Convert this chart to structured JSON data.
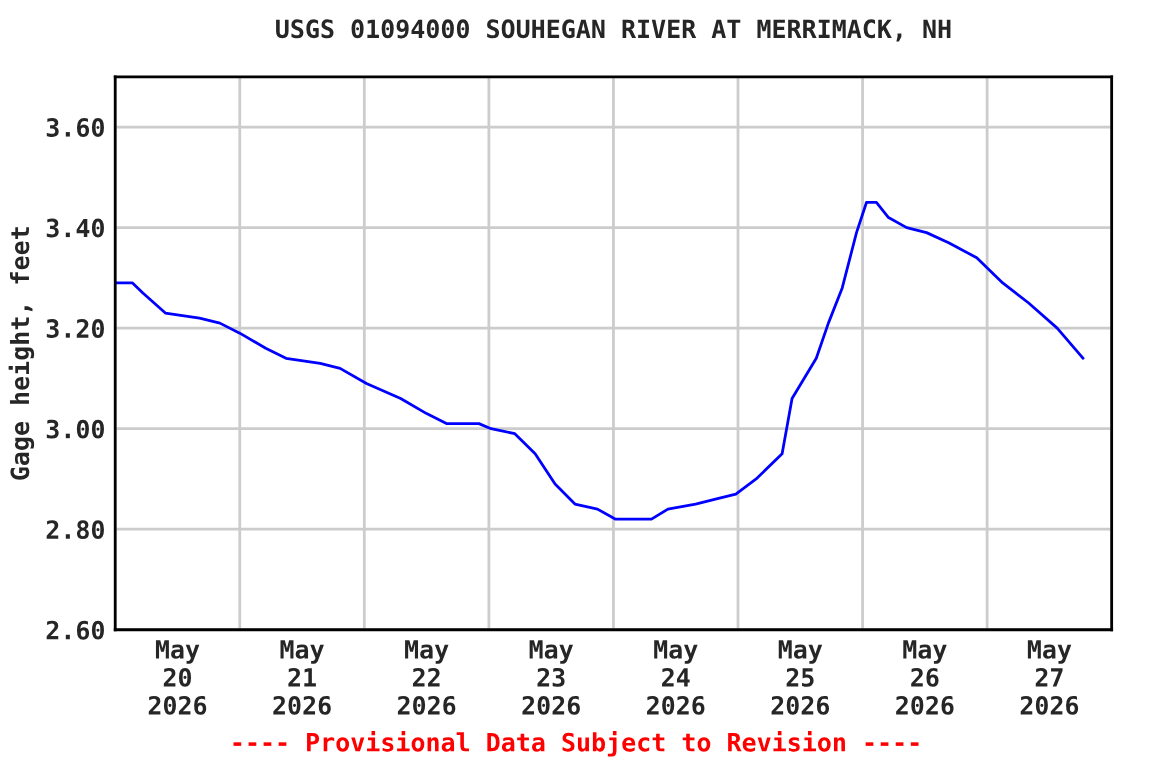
{
  "chart_data": {
    "type": "line",
    "title": "USGS 01094000 SOUHEGAN RIVER AT MERRIMACK, NH",
    "ylabel": "Gage height, feet",
    "annotations": [
      "---- Provisional Data Subject to Revision ----"
    ],
    "x": [
      "2026-05-20T00:00",
      "2026-05-20T03:20",
      "2026-05-20T05:20",
      "2026-05-20T09:40",
      "2026-05-20T16:15",
      "2026-05-20T20:10",
      "2026-05-21T00:00",
      "2026-05-21T05:00",
      "2026-05-21T08:55",
      "2026-05-21T15:30",
      "2026-05-21T19:20",
      "2026-05-22T00:25",
      "2026-05-22T07:00",
      "2026-05-22T12:00",
      "2026-05-22T15:55",
      "2026-05-22T22:05",
      "2026-05-23T00:25",
      "2026-05-23T05:00",
      "2026-05-23T08:55",
      "2026-05-23T12:45",
      "2026-05-23T16:35",
      "2026-05-23T20:55",
      "2026-05-24T00:25",
      "2026-05-24T07:20",
      "2026-05-24T10:30",
      "2026-05-24T15:50",
      "2026-05-24T19:40",
      "2026-05-24T23:35",
      "2026-05-25T03:30",
      "2026-05-25T08:30",
      "2026-05-25T10:25",
      "2026-05-25T15:05",
      "2026-05-25T17:25",
      "2026-05-25T20:05",
      "2026-05-25T22:50",
      "2026-05-26T00:45",
      "2026-05-26T02:40",
      "2026-05-26T05:00",
      "2026-05-26T08:30",
      "2026-05-26T12:20",
      "2026-05-26T16:35",
      "2026-05-26T22:00",
      "2026-05-27T03:00",
      "2026-05-27T08:00",
      "2026-05-27T13:30",
      "2026-05-27T18:30"
    ],
    "series": [
      {
        "color": "#0000ff",
        "values": [
          3.29,
          3.29,
          3.27,
          3.23,
          3.22,
          3.21,
          3.19,
          3.16,
          3.14,
          3.13,
          3.12,
          3.09,
          3.06,
          3.03,
          3.01,
          3.01,
          3.0,
          2.99,
          2.95,
          2.89,
          2.85,
          2.84,
          2.82,
          2.82,
          2.84,
          2.85,
          2.86,
          2.87,
          2.9,
          2.95,
          3.06,
          3.14,
          3.21,
          3.28,
          3.39,
          3.45,
          3.45,
          3.42,
          3.4,
          3.39,
          3.37,
          3.34,
          3.29,
          3.25,
          3.2,
          3.14
        ]
      }
    ],
    "xlim": [
      "2026-05-20T00:00",
      "2026-05-28T00:00"
    ],
    "xticks": [
      {
        "value": "2026-05-20T00:00",
        "label": null
      },
      {
        "value": "2026-05-20T12:00",
        "label": "May\n20\n2026"
      },
      {
        "value": "2026-05-21T00:00",
        "label": null
      },
      {
        "value": "2026-05-21T12:00",
        "label": "May\n21\n2026"
      },
      {
        "value": "2026-05-22T00:00",
        "label": null
      },
      {
        "value": "2026-05-22T12:00",
        "label": "May\n22\n2026"
      },
      {
        "value": "2026-05-23T00:00",
        "label": null
      },
      {
        "value": "2026-05-23T12:00",
        "label": "May\n23\n2026"
      },
      {
        "value": "2026-05-24T00:00",
        "label": null
      },
      {
        "value": "2026-05-24T12:00",
        "label": "May\n24\n2026"
      },
      {
        "value": "2026-05-25T00:00",
        "label": null
      },
      {
        "value": "2026-05-25T12:00",
        "label": "May\n25\n2026"
      },
      {
        "value": "2026-05-26T00:00",
        "label": null
      },
      {
        "value": "2026-05-26T12:00",
        "label": "May\n26\n2026"
      },
      {
        "value": "2026-05-27T00:00",
        "label": null
      },
      {
        "value": "2026-05-27T12:00",
        "label": "May\n27\n2026"
      },
      {
        "value": "2026-05-28T00:00",
        "label": null
      }
    ],
    "ylim": [
      2.6,
      3.7
    ],
    "yticks": [
      {
        "value": 2.6,
        "label": "2.60"
      },
      {
        "value": 2.8,
        "label": "2.80"
      },
      {
        "value": 3.0,
        "label": "3.00"
      },
      {
        "value": 3.2,
        "label": "3.20"
      },
      {
        "value": 3.4,
        "label": "3.40"
      },
      {
        "value": 3.6,
        "label": "3.60"
      }
    ],
    "grid": true,
    "marker": "none",
    "line_style": "solid"
  }
}
